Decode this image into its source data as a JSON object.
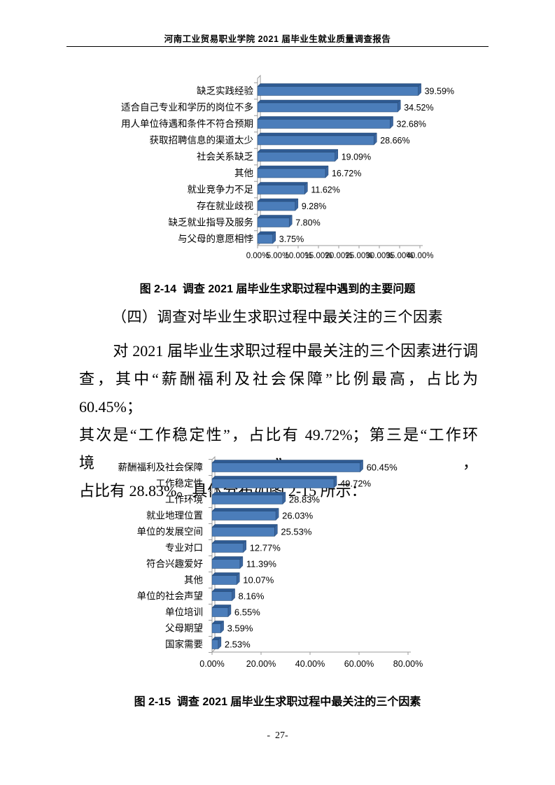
{
  "header": {
    "title": "河南工业贸易职业学院 2021 届毕业生就业质量调查报告"
  },
  "chart_data": [
    {
      "type": "bar",
      "orientation": "horizontal",
      "title": "",
      "xlabel": "",
      "ylabel": "",
      "grid": false,
      "legend": false,
      "style3d": true,
      "categories": [
        "缺乏实践经验",
        "适合自己专业和学历的岗位不多",
        "用人单位待遇和条件不符合预期",
        "获取招聘信息的渠道太少",
        "社会关系缺乏",
        "其他",
        "就业竞争力不足",
        "存在就业歧视",
        "缺乏就业指导及服务",
        "与父母的意愿相悖"
      ],
      "values": [
        39.59,
        34.52,
        32.68,
        28.66,
        19.09,
        16.72,
        11.62,
        9.28,
        7.8,
        3.75
      ],
      "value_labels": [
        "39.59%",
        "34.52%",
        "32.68%",
        "28.66%",
        "19.09%",
        "16.72%",
        "11.62%",
        "9.28%",
        "7.80%",
        "3.75%"
      ],
      "xlim": [
        0,
        40
      ],
      "x_tick_values": [
        0,
        5,
        10,
        15,
        20,
        25,
        30,
        35,
        40
      ],
      "x_tick_labels": [
        "0.00%",
        "5.00%",
        "10.00%",
        "15.00%",
        "20.00%",
        "25.00%",
        "30.00%",
        "35.00%",
        "40.00%"
      ],
      "bar_color": "#4b7dba",
      "bar_top_color": "#2e5a92",
      "bar_side_color": "#3a66a0",
      "bar_stroke": "#24466f",
      "axis_color": "#9b9b9b"
    },
    {
      "type": "bar",
      "orientation": "horizontal",
      "title": "",
      "xlabel": "",
      "ylabel": "",
      "grid": false,
      "legend": false,
      "style3d": true,
      "categories": [
        "薪酬福利及社会保障",
        "工作稳定性",
        "工作环境",
        "就业地理位置",
        "单位的发展空间",
        "专业对口",
        "符合兴趣爱好",
        "其他",
        "单位的社会声望",
        "单位培训",
        "父母期望",
        "国家需要"
      ],
      "values": [
        60.45,
        49.72,
        28.83,
        26.03,
        25.53,
        12.77,
        11.39,
        10.07,
        8.16,
        6.55,
        3.59,
        2.53
      ],
      "value_labels": [
        "60.45%",
        "49.72%",
        "28.83%",
        "26.03%",
        "25.53%",
        "12.77%",
        "11.39%",
        "10.07%",
        "8.16%",
        "6.55%",
        "3.59%",
        "2.53%"
      ],
      "xlim": [
        0,
        80
      ],
      "x_tick_values": [
        0,
        20,
        40,
        60,
        80
      ],
      "x_tick_labels": [
        "0.00%",
        "20.00%",
        "40.00%",
        "60.00%",
        "80.00%"
      ],
      "bar_color": "#4b7dba",
      "bar_top_color": "#2e5a92",
      "bar_side_color": "#3a66a0",
      "bar_stroke": "#24466f",
      "axis_color": "#9b9b9b"
    }
  ],
  "figures": {
    "fig14_caption": "图 2-14  调查 2021 届毕业生求职过程中遇到的主要问题",
    "fig15_caption": "图 2-15  调查 2021 届毕业生求职过程中最关注的三个因素"
  },
  "section": {
    "heading": "（四）调查对毕业生求职过程中最关注的三个因素"
  },
  "paragraph": {
    "lines": [
      "对 2021 届毕业生求职过程中最关注的三个因素进行调",
      "查，其中“薪酬福利及社会保障”比例最高，占比为 60.45%；",
      "其次是“工作稳定性”，占比有 49.72%；第三是“工作环境”，",
      "占比有 28.83%。具体分布如图 2-15 所示："
    ]
  },
  "footer": {
    "page_number": "-  27-"
  }
}
